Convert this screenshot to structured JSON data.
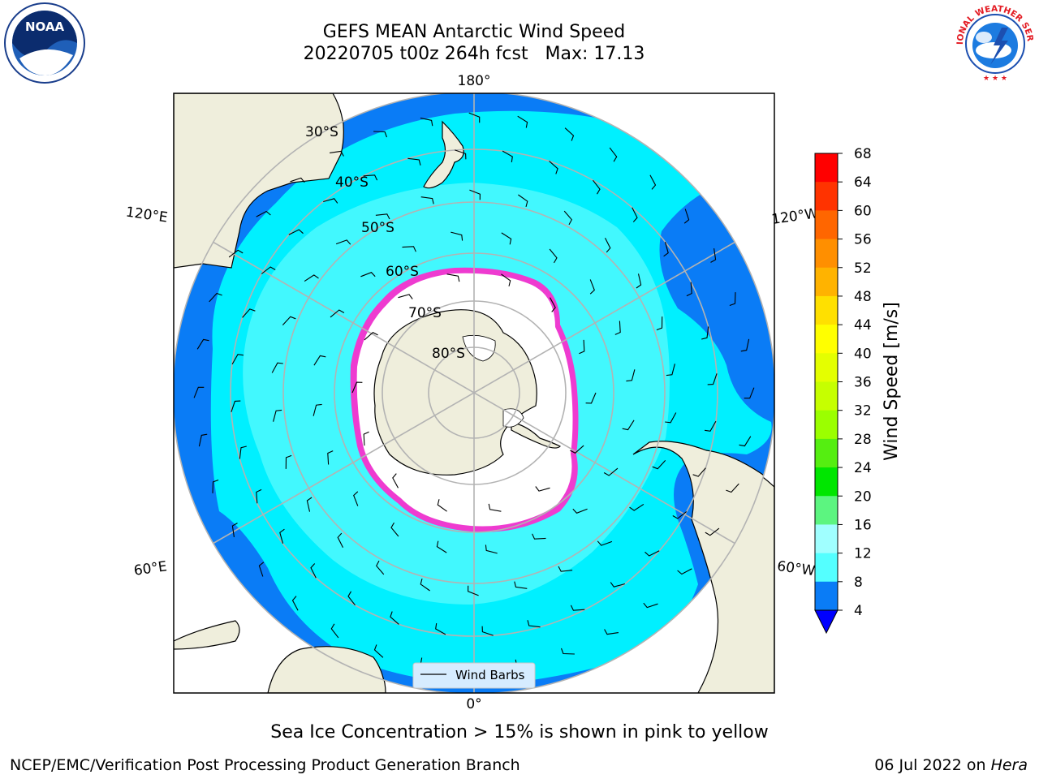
{
  "title": {
    "line1": "GEFS MEAN Antarctic Wind Speed",
    "line2": "20220705 t00z 264h fcst   Max: 17.13"
  },
  "logos": {
    "left": "noaa-logo",
    "left_text": "NOAA",
    "right": "nws-logo",
    "right_text": "NATIONAL WEATHER SERVICE"
  },
  "map": {
    "projection": "south-polar-stereographic",
    "meridian_labels": [
      "180°",
      "120°E",
      "120°W",
      "60°E",
      "60°W",
      "0°"
    ],
    "parallel_labels": [
      "30°S",
      "40°S",
      "50°S",
      "60°S",
      "70°S",
      "80°S"
    ],
    "legend_label": "Wind Barbs",
    "colors": {
      "land": "#efeedc",
      "sea_ice": "#ffffff",
      "ice_edge": "#ee3bd0",
      "ocean_4_8": "#0a7cf6",
      "ocean_8_12": "#00f0ff",
      "ocean_12_16": "#58fbfe"
    }
  },
  "colorbar": {
    "label": "Wind Speed [m/s]",
    "ticks": [
      "68",
      "64",
      "60",
      "56",
      "52",
      "48",
      "44",
      "40",
      "36",
      "32",
      "28",
      "24",
      "20",
      "16",
      "12",
      "8",
      "4"
    ],
    "colors": [
      "#ff0000",
      "#ff3300",
      "#ff6600",
      "#ff8f00",
      "#ffb300",
      "#ffe000",
      "#ffff00",
      "#e4ff00",
      "#c6ff00",
      "#9bff00",
      "#55ee11",
      "#00e600",
      "#5cf580",
      "#a0ffff",
      "#54ffff",
      "#00f5ff",
      "#0a7cf6"
    ],
    "extend_color": "#0000ff"
  },
  "caption": "Sea Ice Concentration > 15% is shown in pink to yellow",
  "footer": {
    "left": "NCEP/EMC/Verification Post Processing Product Generation Branch",
    "right_date": "06 Jul 2022 on ",
    "right_machine": "Hera"
  }
}
